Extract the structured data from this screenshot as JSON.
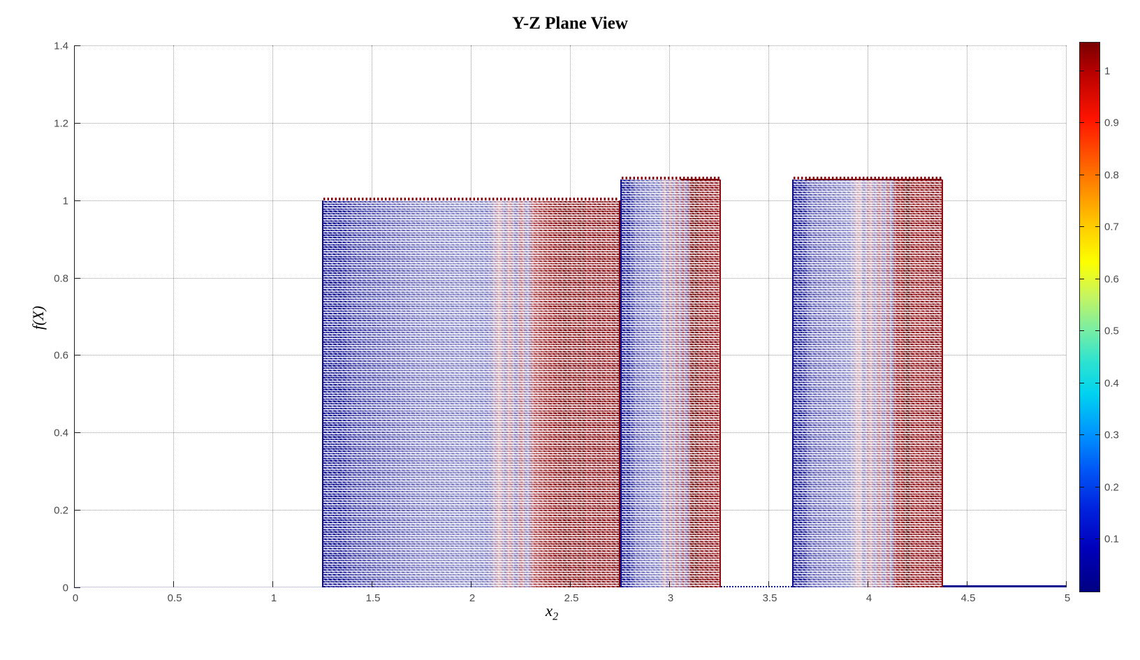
{
  "figure": {
    "background": "#ffffff"
  },
  "chart_data": {
    "type": "scatter",
    "title": "Y-Z Plane View",
    "xlabel": "x",
    "xlabel_subscript": "2",
    "ylabel": "f(X)",
    "xlim": [
      0,
      5
    ],
    "ylim": [
      0,
      1.4
    ],
    "xticks": [
      "0",
      "0.5",
      "1",
      "1.5",
      "2",
      "2.5",
      "3",
      "3.5",
      "4",
      "4.5",
      "5"
    ],
    "xtick_values": [
      0,
      0.5,
      1,
      1.5,
      2,
      2.5,
      3,
      3.5,
      4,
      4.5,
      5
    ],
    "yticks": [
      "0",
      "0.2",
      "0.4",
      "0.6",
      "0.8",
      "1",
      "1.2",
      "1.4"
    ],
    "ytick_values": [
      0,
      0.2,
      0.4,
      0.6,
      0.8,
      1,
      1.2,
      1.4
    ],
    "grid": true,
    "grid_style": "dotted",
    "description": "Y-Z plane projection of a dense 3D scatter/quiver field: three rectangular clusters of densely overlapping dark-blue and dark-red dashed rows",
    "clusters": [
      {
        "x_start": 1.25,
        "x_end": 2.755,
        "y_base": 0,
        "y_top": 1.0,
        "top_fringe": "red-dotted",
        "bands": [
          {
            "p": 0,
            "c": "#0a0a8e"
          },
          {
            "p": 6,
            "c": "#0a0a8e"
          },
          {
            "p": 10,
            "c": "rgba(10,10,142,0.85)"
          },
          {
            "p": 20,
            "c": "rgba(10,10,142,0.72)"
          },
          {
            "p": 33,
            "c": "rgba(10,10,142,0.58)"
          },
          {
            "p": 48,
            "c": "rgba(10,10,142,0.52)"
          },
          {
            "p": 56,
            "c": "rgba(10,10,142,0.55)"
          },
          {
            "p": 60,
            "c": "rgba(148,10,22,0.40)"
          },
          {
            "p": 61,
            "c": "rgba(10,10,142,0.55)"
          },
          {
            "p": 63,
            "c": "rgba(148,10,22,0.50)"
          },
          {
            "p": 65,
            "c": "rgba(10,10,142,0.55)"
          },
          {
            "p": 67,
            "c": "rgba(148,10,22,0.62)"
          },
          {
            "p": 69,
            "c": "rgba(10,10,142,0.50)"
          },
          {
            "p": 71,
            "c": "rgba(148,10,22,0.75)"
          },
          {
            "p": 74,
            "c": "rgba(141,10,16,0.88)"
          },
          {
            "p": 78,
            "c": "#8d0a10"
          },
          {
            "p": 83,
            "c": "#6e0005"
          },
          {
            "p": 84,
            "c": "#8d0a10"
          },
          {
            "p": 88,
            "c": "#6e0005"
          },
          {
            "p": 89,
            "c": "#8d0a10"
          },
          {
            "p": 94,
            "c": "#7a0008"
          },
          {
            "p": 96,
            "c": "#8d0a10"
          },
          {
            "p": 100,
            "c": "#7a0008"
          }
        ]
      },
      {
        "x_start": 2.755,
        "x_end": 3.26,
        "y_base": 0,
        "y_top": 1.053,
        "top_fringe": "red-dotted",
        "top_line": [
          0.6,
          1
        ],
        "bands": [
          {
            "p": 0,
            "c": "#0a0a8e"
          },
          {
            "p": 8,
            "c": "#0a0a8e"
          },
          {
            "p": 14,
            "c": "rgba(10,10,142,0.72)"
          },
          {
            "p": 30,
            "c": "rgba(10,10,142,0.58)"
          },
          {
            "p": 40,
            "c": "rgba(10,10,142,0.55)"
          },
          {
            "p": 44,
            "c": "rgba(148,10,22,0.45)"
          },
          {
            "p": 46,
            "c": "rgba(10,10,142,0.55)"
          },
          {
            "p": 50,
            "c": "rgba(148,10,22,0.55)"
          },
          {
            "p": 53,
            "c": "rgba(10,10,142,0.52)"
          },
          {
            "p": 57,
            "c": "rgba(148,10,22,0.70)"
          },
          {
            "p": 60,
            "c": "rgba(10,10,142,0.55)"
          },
          {
            "p": 63,
            "c": "rgba(148,10,22,0.80)"
          },
          {
            "p": 66,
            "c": "rgba(10,10,142,0.60)"
          },
          {
            "p": 70,
            "c": "#8d0a10"
          },
          {
            "p": 73,
            "c": "#5f0000"
          },
          {
            "p": 78,
            "c": "#6e0005"
          },
          {
            "p": 82,
            "c": "#8d0a10"
          },
          {
            "p": 88,
            "c": "#7a0008"
          },
          {
            "p": 92,
            "c": "#8d0a10"
          },
          {
            "p": 100,
            "c": "#8d0a10"
          }
        ]
      },
      {
        "x_start": 3.62,
        "x_end": 4.38,
        "y_base": 0,
        "y_top": 1.053,
        "top_fringe": "red-dotted",
        "top_line": [
          0.08,
          1
        ],
        "bands": [
          {
            "p": 0,
            "c": "#0a0a8e"
          },
          {
            "p": 6,
            "c": "#0a0a8e"
          },
          {
            "p": 12,
            "c": "rgba(10,10,142,0.70)"
          },
          {
            "p": 25,
            "c": "rgba(10,10,142,0.60)"
          },
          {
            "p": 38,
            "c": "rgba(10,10,142,0.50)"
          },
          {
            "p": 45,
            "c": "rgba(148,10,22,0.35)"
          },
          {
            "p": 47,
            "c": "rgba(10,10,142,0.50)"
          },
          {
            "p": 52,
            "c": "rgba(148,10,22,0.45)"
          },
          {
            "p": 55,
            "c": "rgba(10,10,142,0.50)"
          },
          {
            "p": 58,
            "c": "rgba(148,10,22,0.60)"
          },
          {
            "p": 61,
            "c": "rgba(10,10,142,0.52)"
          },
          {
            "p": 64,
            "c": "rgba(148,10,22,0.72)"
          },
          {
            "p": 66,
            "c": "rgba(10,10,142,0.55)"
          },
          {
            "p": 69,
            "c": "#8d0a10"
          },
          {
            "p": 74,
            "c": "#8d0a10"
          },
          {
            "p": 75,
            "c": "#5f0000"
          },
          {
            "p": 78,
            "c": "#5f0000"
          },
          {
            "p": 80,
            "c": "#8d0a10"
          },
          {
            "p": 90,
            "c": "#8d0a10"
          },
          {
            "p": 94,
            "c": "#7a0008"
          },
          {
            "p": 100,
            "c": "#8d0a10"
          }
        ]
      }
    ],
    "baseline_segments": [
      {
        "x_start": 0,
        "x_end": 1.25,
        "style": "dotted",
        "color": "rgba(10,10,142,0.45)",
        "thickness": 1
      },
      {
        "x_start": 3.26,
        "x_end": 3.62,
        "style": "dotted",
        "color": "#0a0a8e",
        "thickness": 2
      },
      {
        "x_start": 4.38,
        "x_end": 5.0,
        "style": "solid",
        "color": "#0a0a8e",
        "thickness": 3
      }
    ],
    "colors": {
      "navy": "#0a0a8e",
      "dark_red": "#8d0a10",
      "grid": "#9a9a9a"
    },
    "colorbar": {
      "colormap": "jet",
      "min": 0,
      "max": 1.055,
      "tick_values": [
        0.1,
        0.2,
        0.3,
        0.4,
        0.5,
        0.6,
        0.7,
        0.8,
        0.9,
        1
      ],
      "tick_labels": [
        "0.1",
        "0.2",
        "0.3",
        "0.4",
        "0.5",
        "0.6",
        "0.7",
        "0.8",
        "0.9",
        "1"
      ],
      "gradient_top_to_bottom": [
        {
          "p": 0,
          "c": "#7a0000"
        },
        {
          "p": 5,
          "c": "#b30000"
        },
        {
          "p": 14,
          "c": "#ff1400"
        },
        {
          "p": 24,
          "c": "#ff7300"
        },
        {
          "p": 33,
          "c": "#ffc800"
        },
        {
          "p": 40,
          "c": "#fdff00"
        },
        {
          "p": 46,
          "c": "#c8f55e"
        },
        {
          "p": 52,
          "c": "#7deea0"
        },
        {
          "p": 58,
          "c": "#2ee3cf"
        },
        {
          "p": 64,
          "c": "#00d2f0"
        },
        {
          "p": 71,
          "c": "#0096ff"
        },
        {
          "p": 78,
          "c": "#0055f5"
        },
        {
          "p": 85,
          "c": "#0022dd"
        },
        {
          "p": 92,
          "c": "#0000bb"
        },
        {
          "p": 100,
          "c": "#000082"
        }
      ]
    }
  }
}
